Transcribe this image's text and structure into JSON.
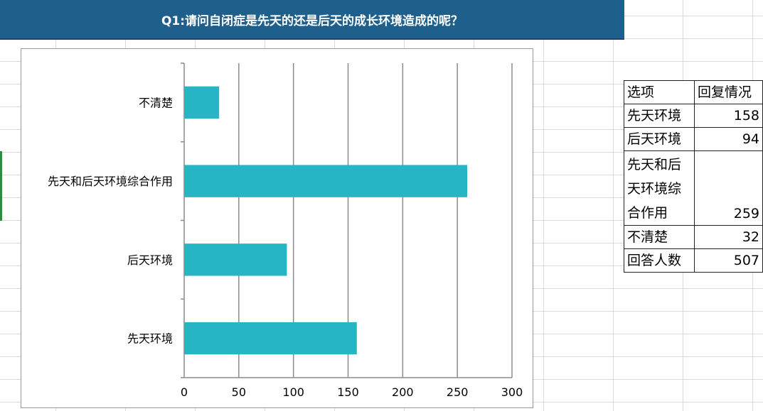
{
  "title": "Q1:请问自闭症是先天的还是后天的成长环境造成的呢？",
  "chart_data": {
    "type": "bar",
    "orientation": "horizontal",
    "categories": [
      "先天环境",
      "后天环境",
      "先天和后天环境综合作用",
      "不清楚"
    ],
    "values": [
      158,
      94,
      259,
      32
    ],
    "xlim": [
      0,
      300
    ],
    "xticks": [
      0,
      50,
      100,
      150,
      200,
      250,
      300
    ],
    "bar_color": "#26b5c4",
    "grid": true,
    "legend": "none"
  },
  "table": {
    "headers": [
      "选项",
      "回复情况"
    ],
    "rows": [
      {
        "option": "先天环境",
        "count": "158"
      },
      {
        "option": "后天环境",
        "count": "94"
      },
      {
        "option_lines": [
          "先天和后",
          "天环境综",
          "合作用"
        ],
        "count": "259"
      },
      {
        "option": "不清楚",
        "count": "32"
      },
      {
        "option": "回答人数",
        "count": "507"
      }
    ]
  }
}
